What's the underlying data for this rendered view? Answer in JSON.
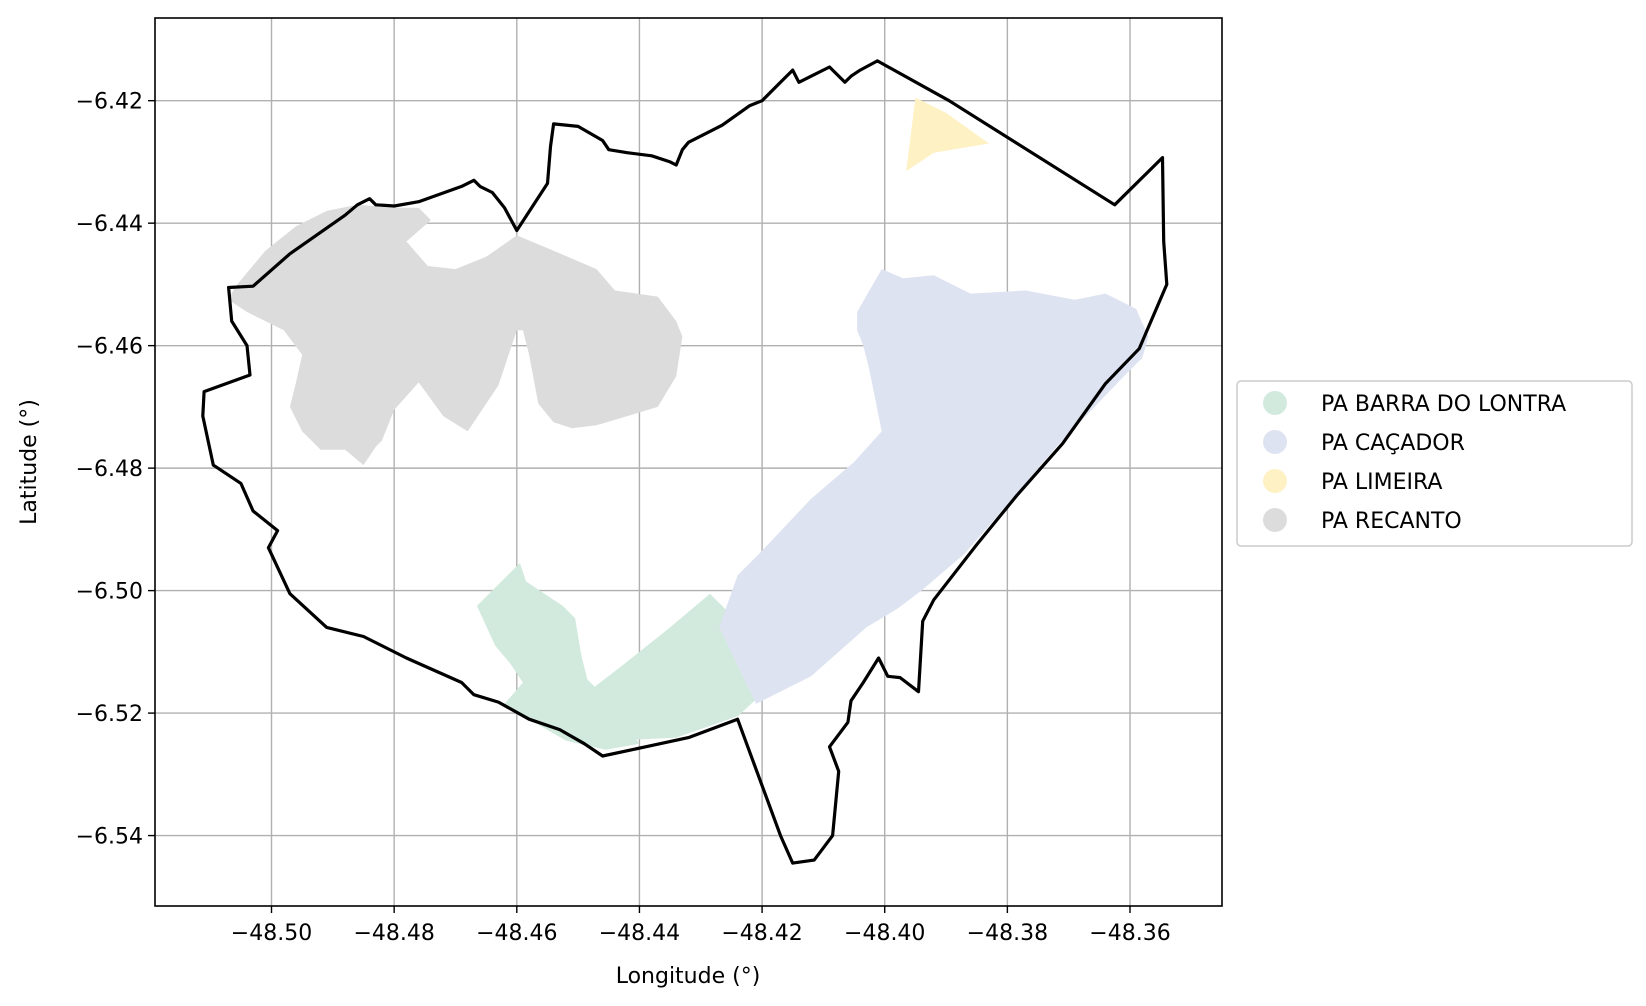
{
  "chart_data": {
    "type": "map",
    "xlabel": "Longitude (°)",
    "ylabel": "Latitude (°)",
    "xlim": [
      -48.519,
      -48.345
    ],
    "ylim": [
      -6.5515,
      -6.4065
    ],
    "xticks": [
      {
        "value": -48.5,
        "label": "−48.50"
      },
      {
        "value": -48.48,
        "label": "−48.48"
      },
      {
        "value": -48.46,
        "label": "−48.46"
      },
      {
        "value": -48.44,
        "label": "−48.44"
      },
      {
        "value": -48.42,
        "label": "−48.42"
      },
      {
        "value": -48.4,
        "label": "−48.40"
      },
      {
        "value": -48.38,
        "label": "−48.38"
      },
      {
        "value": -48.36,
        "label": "−48.36"
      }
    ],
    "yticks": [
      {
        "value": -6.42,
        "label": "−6.42"
      },
      {
        "value": -6.44,
        "label": "−6.44"
      },
      {
        "value": -6.46,
        "label": "−6.46"
      },
      {
        "value": -6.48,
        "label": "−6.48"
      },
      {
        "value": -6.5,
        "label": "−6.50"
      },
      {
        "value": -6.52,
        "label": "−6.52"
      },
      {
        "value": -6.54,
        "label": "−6.54"
      }
    ],
    "grid": true,
    "legend_position": "right",
    "colors": {
      "boundary": "#000000",
      "grid": "#b0b0b0",
      "legend_border": "#cccccc"
    },
    "regions": [
      {
        "name": "PA BARRA DO LONTRA",
        "color": "#d1eadd",
        "polygons": [
          [
            [
              -48.4665,
              -6.5025
            ],
            [
              -48.4615,
              -6.4975
            ],
            [
              -48.4595,
              -6.4955
            ],
            [
              -48.4585,
              -6.4985
            ],
            [
              -48.4555,
              -6.5005
            ],
            [
              -48.4525,
              -6.5025
            ],
            [
              -48.4505,
              -6.5045
            ],
            [
              -48.4495,
              -6.5105
            ],
            [
              -48.4485,
              -6.5145
            ],
            [
              -48.4455,
              -6.5175
            ],
            [
              -48.4425,
              -6.5215
            ],
            [
              -48.44,
              -6.525
            ],
            [
              -48.4455,
              -6.526
            ],
            [
              -48.452,
              -6.5245
            ],
            [
              -48.458,
              -6.521
            ],
            [
              -48.462,
              -6.5185
            ],
            [
              -48.459,
              -6.515
            ],
            [
              -48.461,
              -6.512
            ],
            [
              -48.4635,
              -6.509
            ]
          ],
          [
            [
              -48.4285,
              -6.5005
            ],
            [
              -48.435,
              -6.506
            ],
            [
              -48.4425,
              -6.512
            ],
            [
              -48.449,
              -6.517
            ],
            [
              -48.444,
              -6.5245
            ],
            [
              -48.434,
              -6.524
            ],
            [
              -48.424,
              -6.5205
            ],
            [
              -48.418,
              -6.515
            ],
            [
              -48.4135,
              -6.5135
            ],
            [
              -48.42,
              -6.5085
            ],
            [
              -48.425,
              -6.504
            ]
          ]
        ]
      },
      {
        "name": "PA CAÇADOR",
        "color": "#dee3f1",
        "polygons": [
          [
            [
              -48.4045,
              -6.4545
            ],
            [
              -48.4005,
              -6.4475
            ],
            [
              -48.397,
              -6.449
            ],
            [
              -48.392,
              -6.4485
            ],
            [
              -48.386,
              -6.4515
            ],
            [
              -48.377,
              -6.451
            ],
            [
              -48.369,
              -6.4525
            ],
            [
              -48.364,
              -6.4515
            ],
            [
              -48.359,
              -6.454
            ],
            [
              -48.357,
              -6.4585
            ],
            [
              -48.358,
              -6.462
            ],
            [
              -48.361,
              -6.465
            ],
            [
              -48.372,
              -6.4765
            ],
            [
              -48.38,
              -6.486
            ],
            [
              -48.387,
              -6.494
            ],
            [
              -48.394,
              -6.5
            ],
            [
              -48.398,
              -6.503
            ],
            [
              -48.403,
              -6.506
            ],
            [
              -48.412,
              -6.514
            ],
            [
              -48.421,
              -6.5185
            ],
            [
              -48.427,
              -6.506
            ],
            [
              -48.424,
              -6.4975
            ],
            [
              -48.42,
              -6.4935
            ],
            [
              -48.412,
              -6.485
            ],
            [
              -48.405,
              -6.479
            ],
            [
              -48.4005,
              -6.474
            ],
            [
              -48.4025,
              -6.464
            ],
            [
              -48.4035,
              -6.46
            ],
            [
              -48.4045,
              -6.4575
            ]
          ]
        ]
      },
      {
        "name": "PA LIMEIRA",
        "color": "#fef1c4",
        "polygons": [
          [
            [
              -48.395,
              -6.4195
            ],
            [
              -48.39,
              -6.422
            ],
            [
              -48.383,
              -6.427
            ],
            [
              -48.392,
              -6.4285
            ],
            [
              -48.3965,
              -6.4315
            ],
            [
              -48.396,
              -6.4275
            ]
          ]
        ]
      },
      {
        "name": "PA RECANTO",
        "color": "#dcdcdc",
        "polygons": [
          [
            [
              -48.506,
              -6.4505
            ],
            [
              -48.501,
              -6.4445
            ],
            [
              -48.496,
              -6.4405
            ],
            [
              -48.491,
              -6.438
            ],
            [
              -48.486,
              -6.437
            ],
            [
              -48.48,
              -6.4375
            ],
            [
              -48.476,
              -6.4375
            ],
            [
              -48.474,
              -6.4395
            ],
            [
              -48.478,
              -6.443
            ],
            [
              -48.4745,
              -6.447
            ],
            [
              -48.47,
              -6.4475
            ],
            [
              -48.465,
              -6.4455
            ],
            [
              -48.46,
              -6.442
            ],
            [
              -48.454,
              -6.4445
            ],
            [
              -48.447,
              -6.4475
            ],
            [
              -48.444,
              -6.451
            ],
            [
              -48.437,
              -6.452
            ],
            [
              -48.434,
              -6.456
            ],
            [
              -48.433,
              -6.4585
            ],
            [
              -48.434,
              -6.465
            ],
            [
              -48.437,
              -6.47
            ],
            [
              -48.442,
              -6.4715
            ],
            [
              -48.447,
              -6.473
            ],
            [
              -48.451,
              -6.4735
            ],
            [
              -48.454,
              -6.4725
            ],
            [
              -48.4565,
              -6.4695
            ],
            [
              -48.458,
              -6.4615
            ],
            [
              -48.459,
              -6.4575
            ],
            [
              -48.46,
              -6.4575
            ],
            [
              -48.463,
              -6.4665
            ],
            [
              -48.468,
              -6.474
            ],
            [
              -48.472,
              -6.4715
            ],
            [
              -48.476,
              -6.466
            ],
            [
              -48.48,
              -6.4705
            ],
            [
              -48.482,
              -6.4755
            ],
            [
              -48.483,
              -6.4765
            ],
            [
              -48.485,
              -6.4795
            ],
            [
              -48.488,
              -6.477
            ],
            [
              -48.492,
              -6.477
            ],
            [
              -48.495,
              -6.474
            ],
            [
              -48.497,
              -6.47
            ],
            [
              -48.496,
              -6.466
            ],
            [
              -48.495,
              -6.4615
            ],
            [
              -48.498,
              -6.4575
            ],
            [
              -48.504,
              -6.4545
            ],
            [
              -48.507,
              -6.4525
            ]
          ]
        ]
      }
    ],
    "boundary": [
      [
        -48.4012,
        -6.4135
      ],
      [
        -48.404,
        -6.415
      ],
      [
        -48.4055,
        -6.416
      ],
      [
        -48.4065,
        -6.417
      ],
      [
        -48.409,
        -6.4145
      ],
      [
        -48.412,
        -6.416
      ],
      [
        -48.414,
        -6.417
      ],
      [
        -48.415,
        -6.415
      ],
      [
        -48.417,
        -6.417
      ],
      [
        -48.42,
        -6.42
      ],
      [
        -48.422,
        -6.4208
      ],
      [
        -48.4265,
        -6.424
      ],
      [
        -48.432,
        -6.4268
      ],
      [
        -48.433,
        -6.428
      ],
      [
        -48.434,
        -6.4305
      ],
      [
        -48.435,
        -6.43
      ],
      [
        -48.438,
        -6.429
      ],
      [
        -48.442,
        -6.4285
      ],
      [
        -48.445,
        -6.428
      ],
      [
        -48.446,
        -6.4265
      ],
      [
        -48.45,
        -6.4242
      ],
      [
        -48.454,
        -6.4238
      ],
      [
        -48.4545,
        -6.4275
      ],
      [
        -48.455,
        -6.4335
      ],
      [
        -48.46,
        -6.4412
      ],
      [
        -48.462,
        -6.4375
      ],
      [
        -48.464,
        -6.435
      ],
      [
        -48.466,
        -6.434
      ],
      [
        -48.467,
        -6.433
      ],
      [
        -48.469,
        -6.434
      ],
      [
        -48.476,
        -6.4365
      ],
      [
        -48.48,
        -6.4372
      ],
      [
        -48.483,
        -6.437
      ],
      [
        -48.484,
        -6.436
      ],
      [
        -48.486,
        -6.437
      ],
      [
        -48.488,
        -6.4387
      ],
      [
        -48.492,
        -6.4415
      ],
      [
        -48.497,
        -6.445
      ],
      [
        -48.503,
        -6.4503
      ],
      [
        -48.507,
        -6.4505
      ],
      [
        -48.5065,
        -6.456
      ],
      [
        -48.504,
        -6.46
      ],
      [
        -48.5035,
        -6.4648
      ],
      [
        -48.511,
        -6.4675
      ],
      [
        -48.5112,
        -6.4715
      ],
      [
        -48.5095,
        -6.4795
      ],
      [
        -48.505,
        -6.4825
      ],
      [
        -48.503,
        -6.487
      ],
      [
        -48.499,
        -6.4902
      ],
      [
        -48.5005,
        -6.493
      ],
      [
        -48.497,
        -6.5005
      ],
      [
        -48.491,
        -6.506
      ],
      [
        -48.485,
        -6.5075
      ],
      [
        -48.478,
        -6.511
      ],
      [
        -48.469,
        -6.515
      ],
      [
        -48.467,
        -6.517
      ],
      [
        -48.463,
        -6.5182
      ],
      [
        -48.458,
        -6.521
      ],
      [
        -48.453,
        -6.5227
      ],
      [
        -48.449,
        -6.525
      ],
      [
        -48.446,
        -6.527
      ],
      [
        -48.439,
        -6.5255
      ],
      [
        -48.432,
        -6.524
      ],
      [
        -48.424,
        -6.521
      ],
      [
        -48.417,
        -6.54
      ],
      [
        -48.415,
        -6.5445
      ],
      [
        -48.4115,
        -6.544
      ],
      [
        -48.4085,
        -6.54
      ],
      [
        -48.4075,
        -6.5295
      ],
      [
        -48.409,
        -6.5255
      ],
      [
        -48.406,
        -6.5215
      ],
      [
        -48.4055,
        -6.518
      ],
      [
        -48.4035,
        -6.515
      ],
      [
        -48.401,
        -6.511
      ],
      [
        -48.3995,
        -6.514
      ],
      [
        -48.3975,
        -6.5142
      ],
      [
        -48.3945,
        -6.5165
      ],
      [
        -48.3938,
        -6.505
      ],
      [
        -48.392,
        -6.5015
      ],
      [
        -48.385,
        -6.4925
      ],
      [
        -48.3785,
        -6.4845
      ],
      [
        -48.371,
        -6.476
      ],
      [
        -48.364,
        -6.4662
      ],
      [
        -48.3585,
        -6.4605
      ],
      [
        -48.354,
        -6.45
      ],
      [
        -48.3545,
        -6.443
      ],
      [
        -48.3547,
        -6.4293
      ],
      [
        -48.3625,
        -6.437
      ],
      [
        -48.3895,
        -6.42
      ],
      [
        -48.4012,
        -6.4135
      ]
    ]
  }
}
